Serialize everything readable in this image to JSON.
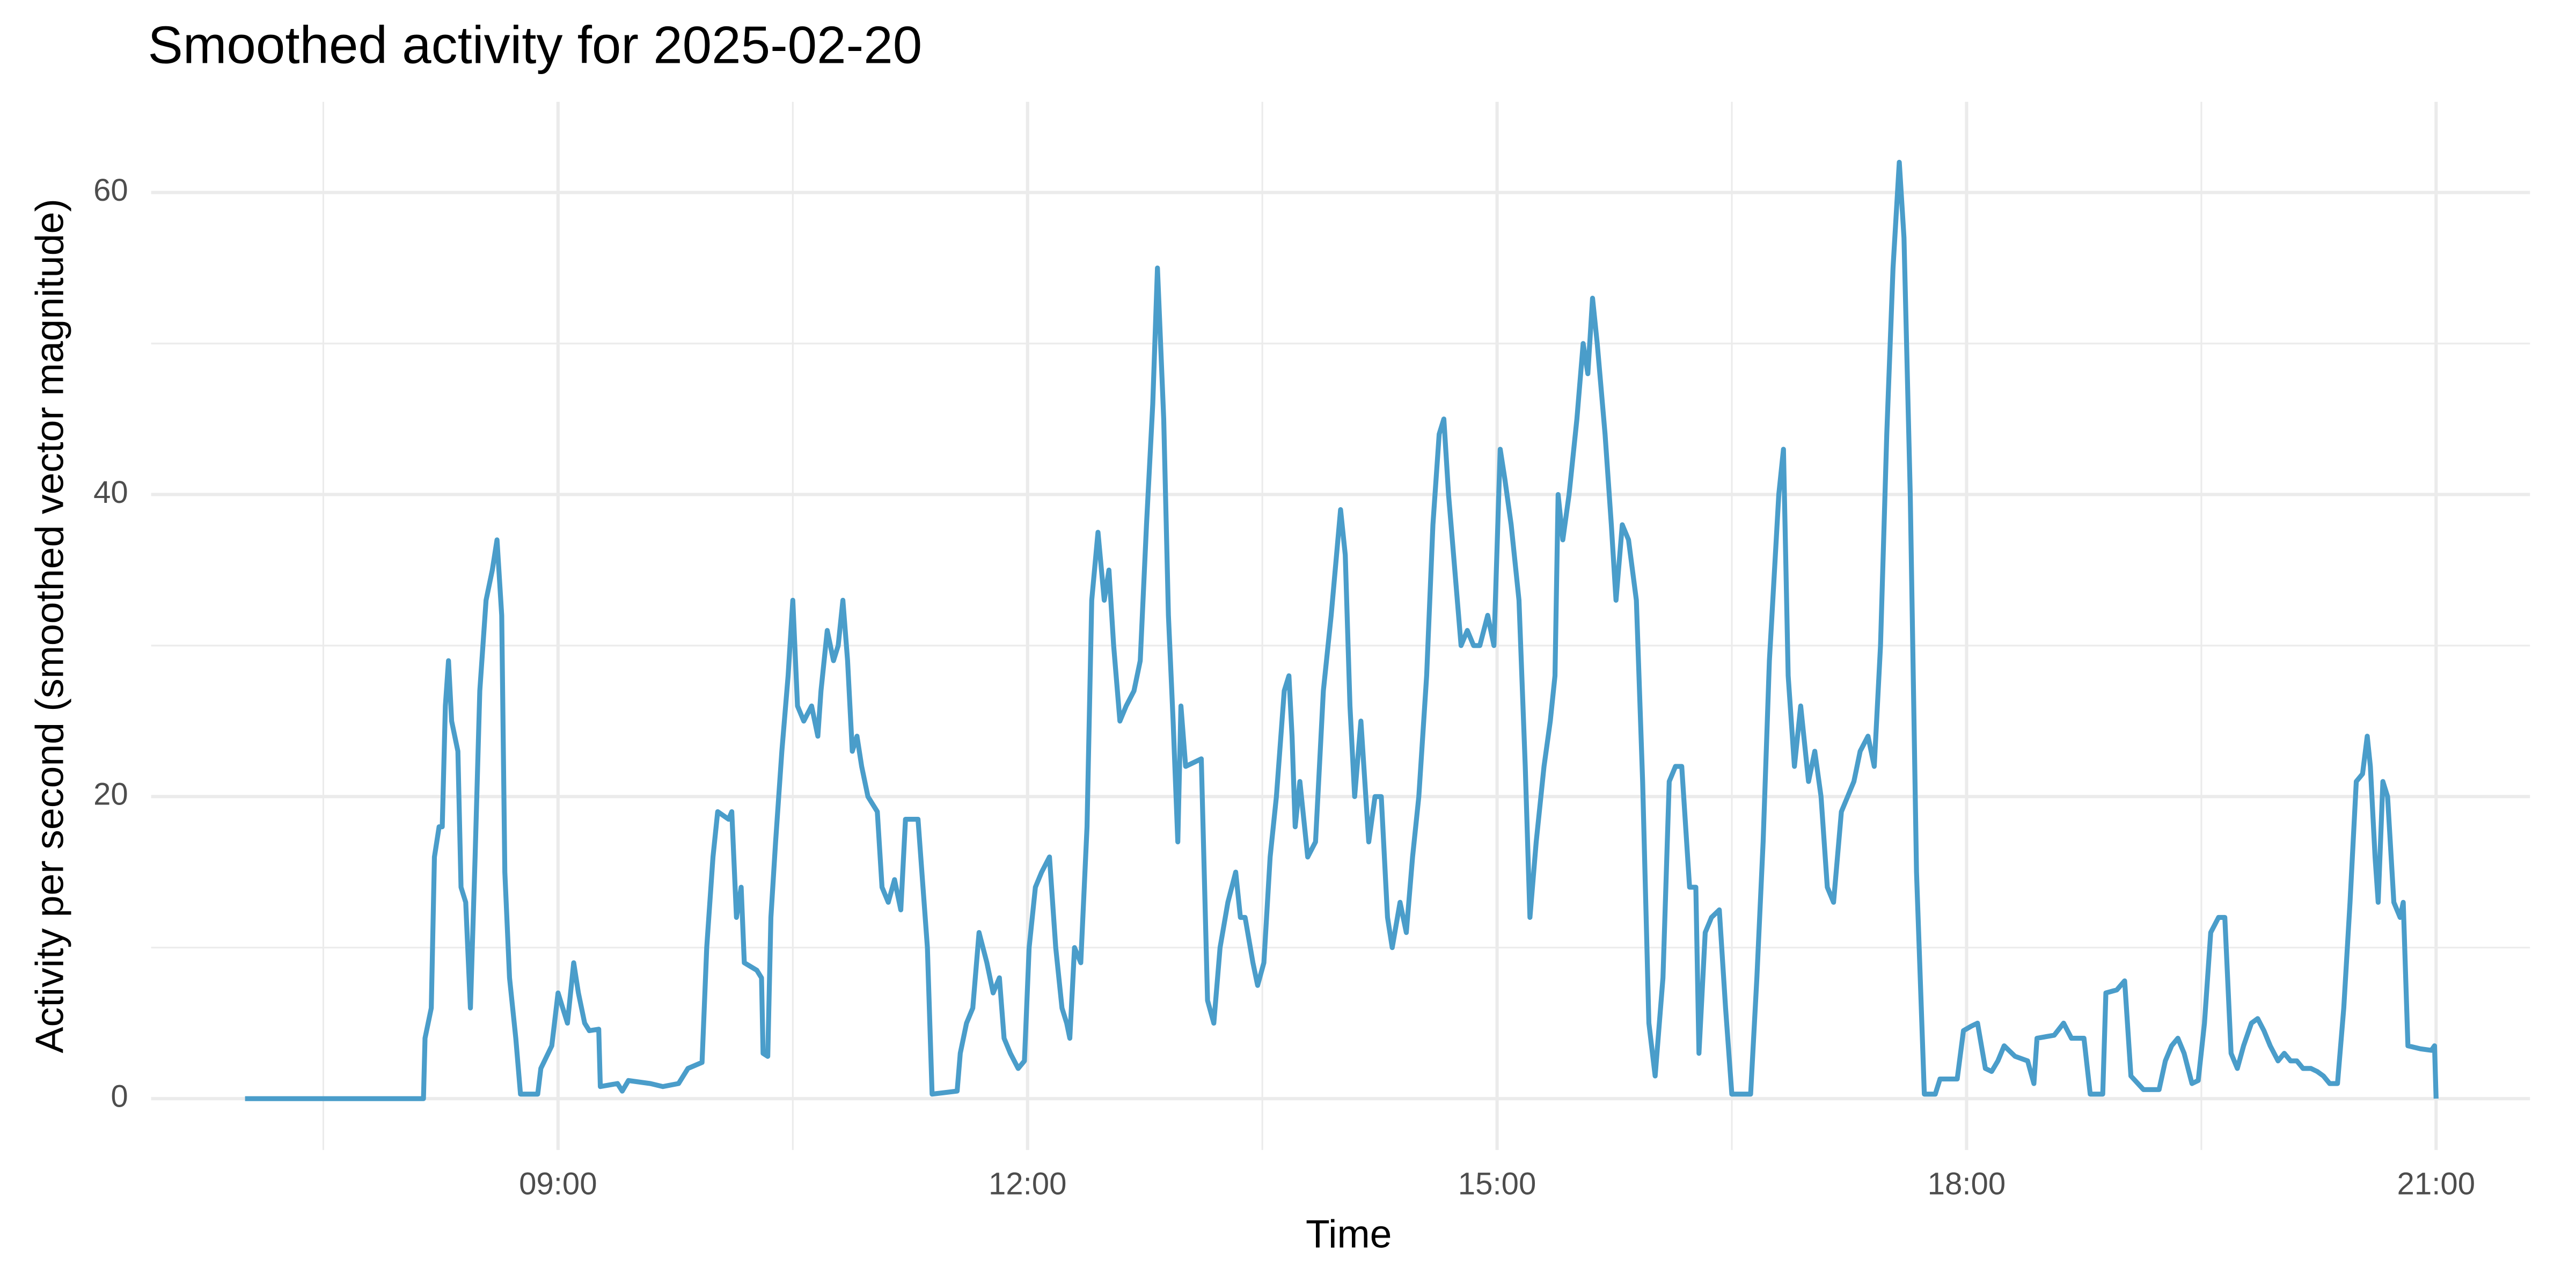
{
  "chart_data": {
    "type": "line",
    "title": "Smoothed activity for 2025-02-20",
    "x_label": "Time",
    "y_label": "Activity per second (smoothed vector magnitude)",
    "grid": true,
    "xlim": [
      6.4,
      21.6
    ],
    "ylim": [
      -3.4,
      66
    ],
    "xticks": [
      {
        "value": 9,
        "label": "09:00"
      },
      {
        "value": 12,
        "label": "12:00"
      },
      {
        "value": 15,
        "label": "15:00"
      },
      {
        "value": 18,
        "label": "18:00"
      },
      {
        "value": 21,
        "label": "21:00"
      }
    ],
    "x_minor_ticks": [
      7.5,
      10.5,
      13.5,
      16.5,
      19.5
    ],
    "yticks": [
      0,
      20,
      40,
      60
    ],
    "y_minor_ticks": [
      10,
      30,
      50
    ],
    "x": [
      7.0,
      8.14,
      8.15,
      8.19,
      8.21,
      8.24,
      8.26,
      8.28,
      8.3,
      8.32,
      8.36,
      8.38,
      8.41,
      8.44,
      8.47,
      8.5,
      8.54,
      8.58,
      8.61,
      8.64,
      8.66,
      8.69,
      8.73,
      8.76,
      8.87,
      8.89,
      8.96,
      9.0,
      9.03,
      9.06,
      9.1,
      9.13,
      9.17,
      9.2,
      9.26,
      9.27,
      9.38,
      9.41,
      9.45,
      9.59,
      9.67,
      9.77,
      9.83,
      9.92,
      9.95,
      9.99,
      10.02,
      10.09,
      10.11,
      10.14,
      10.17,
      10.19,
      10.27,
      10.3,
      10.31,
      10.34,
      10.36,
      10.39,
      10.43,
      10.47,
      10.5,
      10.53,
      10.57,
      10.62,
      10.66,
      10.68,
      10.72,
      10.76,
      10.79,
      10.82,
      10.85,
      10.88,
      10.91,
      10.94,
      10.98,
      11.04,
      11.07,
      11.11,
      11.15,
      11.19,
      11.22,
      11.3,
      11.36,
      11.39,
      11.55,
      11.57,
      11.61,
      11.65,
      11.69,
      11.74,
      11.78,
      11.82,
      11.85,
      11.89,
      11.94,
      11.98,
      12.01,
      12.05,
      12.09,
      12.14,
      12.18,
      12.22,
      12.25,
      12.27,
      12.3,
      12.34,
      12.38,
      12.41,
      12.45,
      12.49,
      12.52,
      12.55,
      12.59,
      12.63,
      12.68,
      12.72,
      12.76,
      12.8,
      12.83,
      12.87,
      12.9,
      12.93,
      12.96,
      12.98,
      13.01,
      13.11,
      13.15,
      13.19,
      13.23,
      13.28,
      13.33,
      13.36,
      13.39,
      13.44,
      13.47,
      13.51,
      13.55,
      13.59,
      13.64,
      13.67,
      13.69,
      13.71,
      13.74,
      13.79,
      13.84,
      13.89,
      13.94,
      14.0,
      14.03,
      14.06,
      14.09,
      14.13,
      14.18,
      14.22,
      14.26,
      14.3,
      14.33,
      14.38,
      14.42,
      14.46,
      14.5,
      14.55,
      14.59,
      14.63,
      14.66,
      14.69,
      14.73,
      14.77,
      14.81,
      14.85,
      14.89,
      14.94,
      14.98,
      15.02,
      15.05,
      15.09,
      15.14,
      15.18,
      15.21,
      15.25,
      15.3,
      15.34,
      15.37,
      15.39,
      15.42,
      15.46,
      15.51,
      15.55,
      15.58,
      15.61,
      15.64,
      15.69,
      15.73,
      15.76,
      15.8,
      15.84,
      15.89,
      15.93,
      15.97,
      16.01,
      16.06,
      16.1,
      16.14,
      16.18,
      16.23,
      16.27,
      16.29,
      16.33,
      16.37,
      16.42,
      16.46,
      16.5,
      16.62,
      16.66,
      16.7,
      16.74,
      16.8,
      16.83,
      16.86,
      16.9,
      16.94,
      16.99,
      17.03,
      17.07,
      17.11,
      17.15,
      17.2,
      17.24,
      17.28,
      17.32,
      17.37,
      17.41,
      17.45,
      17.49,
      17.53,
      17.57,
      17.6,
      17.64,
      17.68,
      17.73,
      17.8,
      17.83,
      17.94,
      17.98,
      18.03,
      18.07,
      18.12,
      18.16,
      18.2,
      18.24,
      18.31,
      18.39,
      18.43,
      18.45,
      18.56,
      18.62,
      18.67,
      18.75,
      18.79,
      18.87,
      18.89,
      18.96,
      19.01,
      19.05,
      19.13,
      19.23,
      19.27,
      19.31,
      19.35,
      19.39,
      19.44,
      19.48,
      19.52,
      19.56,
      19.61,
      19.65,
      19.69,
      19.73,
      19.77,
      19.82,
      19.86,
      19.9,
      19.94,
      19.99,
      20.03,
      20.07,
      20.11,
      20.15,
      20.2,
      20.24,
      20.28,
      20.32,
      20.37,
      20.41,
      20.45,
      20.49,
      20.53,
      20.56,
      20.58,
      20.61,
      20.63,
      20.66,
      20.69,
      20.73,
      20.77,
      20.79,
      20.82,
      20.9,
      20.97,
      20.99,
      21.0
    ],
    "series": [
      {
        "name": "Activity",
        "color": "#4a9dca",
        "values": [
          0,
          0,
          4,
          6,
          16,
          18,
          18,
          26,
          29,
          25,
          23,
          14,
          13,
          6,
          16,
          27,
          33,
          35,
          37,
          32,
          15,
          8,
          4,
          0.3,
          0.3,
          2,
          3.5,
          7,
          6,
          5,
          9,
          7,
          5,
          4.5,
          4.6,
          0.8,
          1,
          0.5,
          1.2,
          1,
          0.8,
          1,
          2,
          2.4,
          10,
          16,
          19,
          18.5,
          19,
          12,
          14,
          9,
          8.5,
          8,
          3,
          2.8,
          12,
          17,
          23,
          28,
          33,
          26,
          25,
          26,
          24,
          27,
          31,
          29,
          30,
          33,
          29,
          23,
          24,
          22,
          20,
          19,
          14,
          13,
          14.5,
          12.5,
          18.5,
          18.5,
          10,
          0.3,
          0.5,
          3,
          5,
          6,
          11,
          9,
          7,
          8,
          4,
          3,
          2,
          2.5,
          10,
          14,
          15,
          16,
          10,
          6,
          5,
          4,
          10,
          9,
          18,
          33,
          37.5,
          33,
          35,
          30,
          25,
          26,
          27,
          29,
          38,
          46,
          55,
          45,
          32,
          25,
          17,
          26,
          22,
          22.5,
          6.5,
          5,
          10,
          13,
          15,
          12,
          12,
          9,
          7.5,
          9,
          16,
          20,
          27,
          28,
          24,
          18,
          21,
          16,
          17,
          27,
          32,
          39,
          36,
          26,
          20,
          25,
          17,
          20,
          20,
          12,
          10,
          13,
          11,
          16,
          20,
          28,
          38,
          44,
          45,
          40,
          35,
          30,
          31,
          30,
          30,
          32,
          30,
          43,
          41,
          38,
          33,
          22,
          12,
          17,
          22,
          25,
          28,
          40,
          37,
          40,
          45,
          50,
          48,
          53,
          50,
          44,
          38,
          33,
          38,
          37,
          33,
          21,
          5,
          1.5,
          8,
          21,
          22,
          22,
          14,
          14,
          3,
          11,
          12,
          12.5,
          6,
          0.3,
          0.3,
          8,
          17,
          29,
          40,
          43,
          28,
          22,
          26,
          21,
          23,
          20,
          14,
          13,
          19,
          20,
          21,
          23,
          24,
          22,
          30,
          44,
          55,
          62,
          57,
          40,
          15,
          0.3,
          0.3,
          1.3,
          1.3,
          4.5,
          4.8,
          5,
          2,
          1.8,
          2.5,
          3.5,
          2.8,
          2.5,
          1,
          4,
          4.2,
          5,
          4,
          4,
          0.3,
          0.3,
          7,
          7.2,
          7.8,
          1.5,
          0.6,
          0.6,
          2.5,
          3.5,
          4,
          3,
          1,
          1.2,
          5,
          11,
          12,
          12,
          3,
          2,
          3.5,
          5,
          5.3,
          4.5,
          3.5,
          2.5,
          3,
          2.5,
          2.5,
          2,
          2,
          1.8,
          1.5,
          1,
          1,
          6,
          13,
          21,
          21.5,
          24,
          22,
          16,
          13,
          21,
          20,
          13,
          12,
          13,
          3.5,
          3.3,
          3.2,
          3.5,
          0
        ]
      }
    ]
  }
}
